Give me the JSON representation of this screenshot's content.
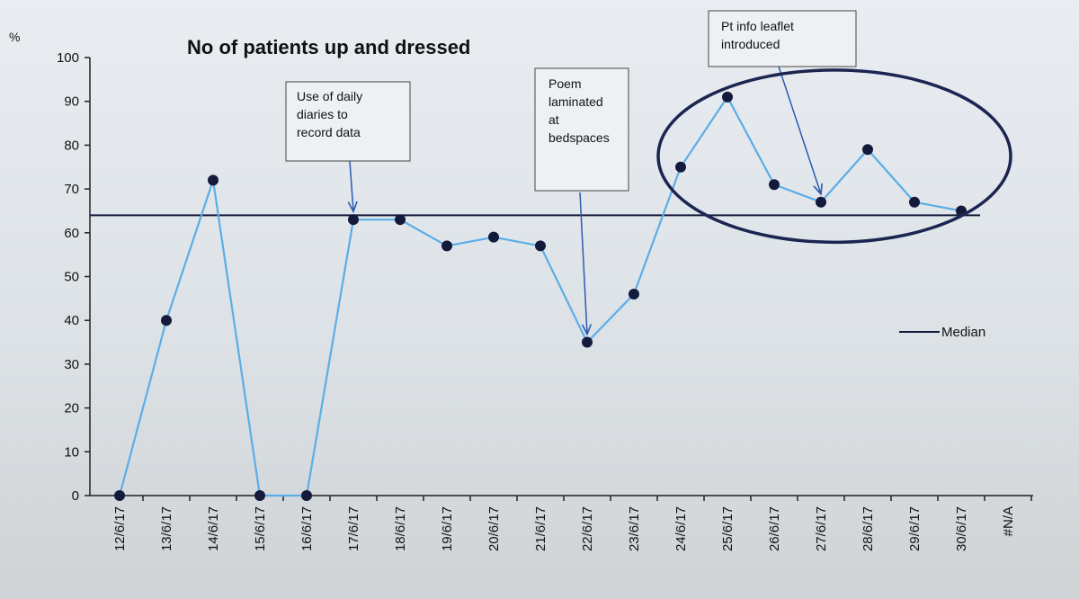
{
  "chart_data": {
    "type": "line",
    "title": "No of patients up and dressed",
    "ylabel": "%",
    "ylim": [
      0,
      100
    ],
    "yticks": [
      0,
      10,
      20,
      30,
      40,
      50,
      60,
      70,
      80,
      90,
      100
    ],
    "categories": [
      "12/6/17",
      "13/6/17",
      "14/6/17",
      "15/6/17",
      "16/6/17",
      "17/6/17",
      "18/6/17",
      "19/6/17",
      "20/6/17",
      "21/6/17",
      "22/6/17",
      "23/6/17",
      "24/6/17",
      "25/6/17",
      "26/6/17",
      "27/6/17",
      "28/6/17",
      "29/6/17",
      "30/6/17",
      "#N/A"
    ],
    "series": [
      {
        "values": [
          0,
          40,
          72,
          0,
          0,
          63,
          63,
          57,
          59,
          57,
          35,
          46,
          75,
          91,
          71,
          67,
          79,
          67,
          65,
          null
        ],
        "color": "#5aaee8",
        "marker_color": "#141a3c"
      }
    ],
    "median": {
      "name": "Median",
      "value": 64,
      "color": "#141a3c"
    },
    "legend_position": "right",
    "annotations": [
      {
        "lines": [
          "Use of daily",
          "diaries to",
          "record data"
        ],
        "target": "17/6/17"
      },
      {
        "lines": [
          "Poem",
          "laminated",
          "at",
          "bedspaces"
        ],
        "target": "22/6/17"
      },
      {
        "lines": [
          "Pt info leaflet",
          "introduced"
        ],
        "target": "27/6/17"
      }
    ],
    "highlight": {
      "from": "24/6/17",
      "to": "30/6/17",
      "shape": "ellipse"
    },
    "grid": false
  }
}
